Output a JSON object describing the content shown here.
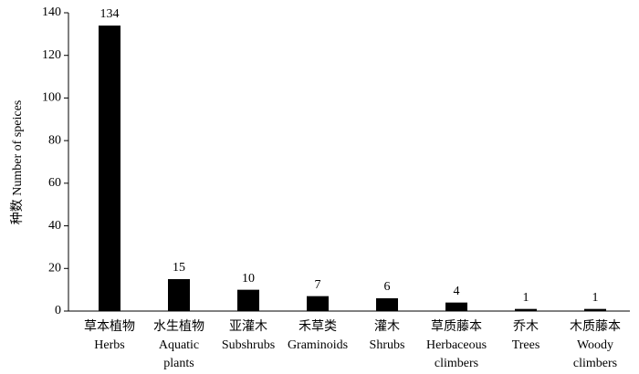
{
  "chart_data": {
    "type": "bar",
    "y_label": "种数 Number of speices",
    "categories": [
      [
        "草本植物",
        "Herbs"
      ],
      [
        "水生植物",
        "Aquatic",
        "plants"
      ],
      [
        "亚灌木",
        "Subshrubs"
      ],
      [
        "禾草类",
        "Graminoids"
      ],
      [
        "灌木",
        "Shrubs"
      ],
      [
        "草质藤本",
        "Herbaceous",
        "climbers"
      ],
      [
        "乔木",
        "Trees"
      ],
      [
        "木质藤本",
        "Woody",
        "climbers"
      ]
    ],
    "values": [
      134,
      15,
      10,
      7,
      6,
      4,
      1,
      1
    ],
    "color": "#000000",
    "ylim": [
      0,
      140
    ],
    "yticks": [
      0,
      20,
      40,
      60,
      80,
      100,
      120,
      140
    ],
    "grid": false
  }
}
